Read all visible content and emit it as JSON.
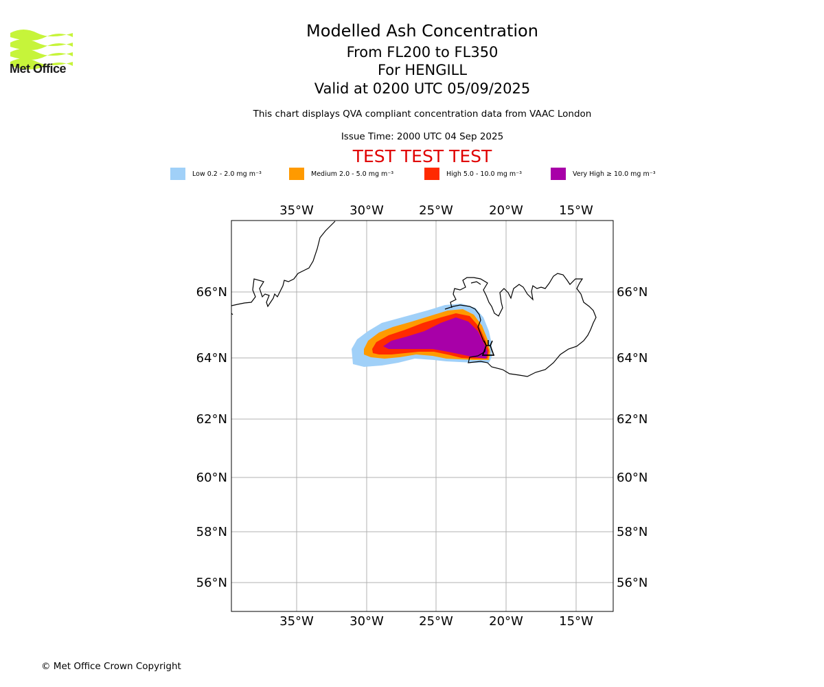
{
  "header": {
    "logo_text": "Met Office",
    "title": "Modelled Ash Concentration",
    "flight_levels": "From FL200 to FL350",
    "volcano": "For HENGILL",
    "valid_time": "Valid at 0200 UTC 05/09/2025",
    "description": "This chart displays QVA compliant concentration data from VAAC London",
    "issue_time": "Issue Time: 2000 UTC 04 Sep 2025",
    "test_banner": "TEST TEST TEST"
  },
  "legend": [
    {
      "label": "Low 0.2 - 2.0 mg m⁻³",
      "color": "#a0d0f8"
    },
    {
      "label": "Medium 2.0 - 5.0 mg m⁻³",
      "color": "#ff9a00"
    },
    {
      "label": "High 5.0 - 10.0 mg m⁻³",
      "color": "#ff2a00"
    },
    {
      "label": "Very High ≥ 10.0 mg m⁻³",
      "color": "#a800a8"
    }
  ],
  "map": {
    "lon_ticks": [
      "35°W",
      "30°W",
      "25°W",
      "20°W",
      "15°W"
    ],
    "lat_ticks": [
      "66°N",
      "64°N",
      "62°N",
      "60°N",
      "58°N",
      "56°N"
    ],
    "volcano_icon": "volcano-icon"
  },
  "footer": {
    "copyright": "© Met Office Crown Copyright"
  }
}
